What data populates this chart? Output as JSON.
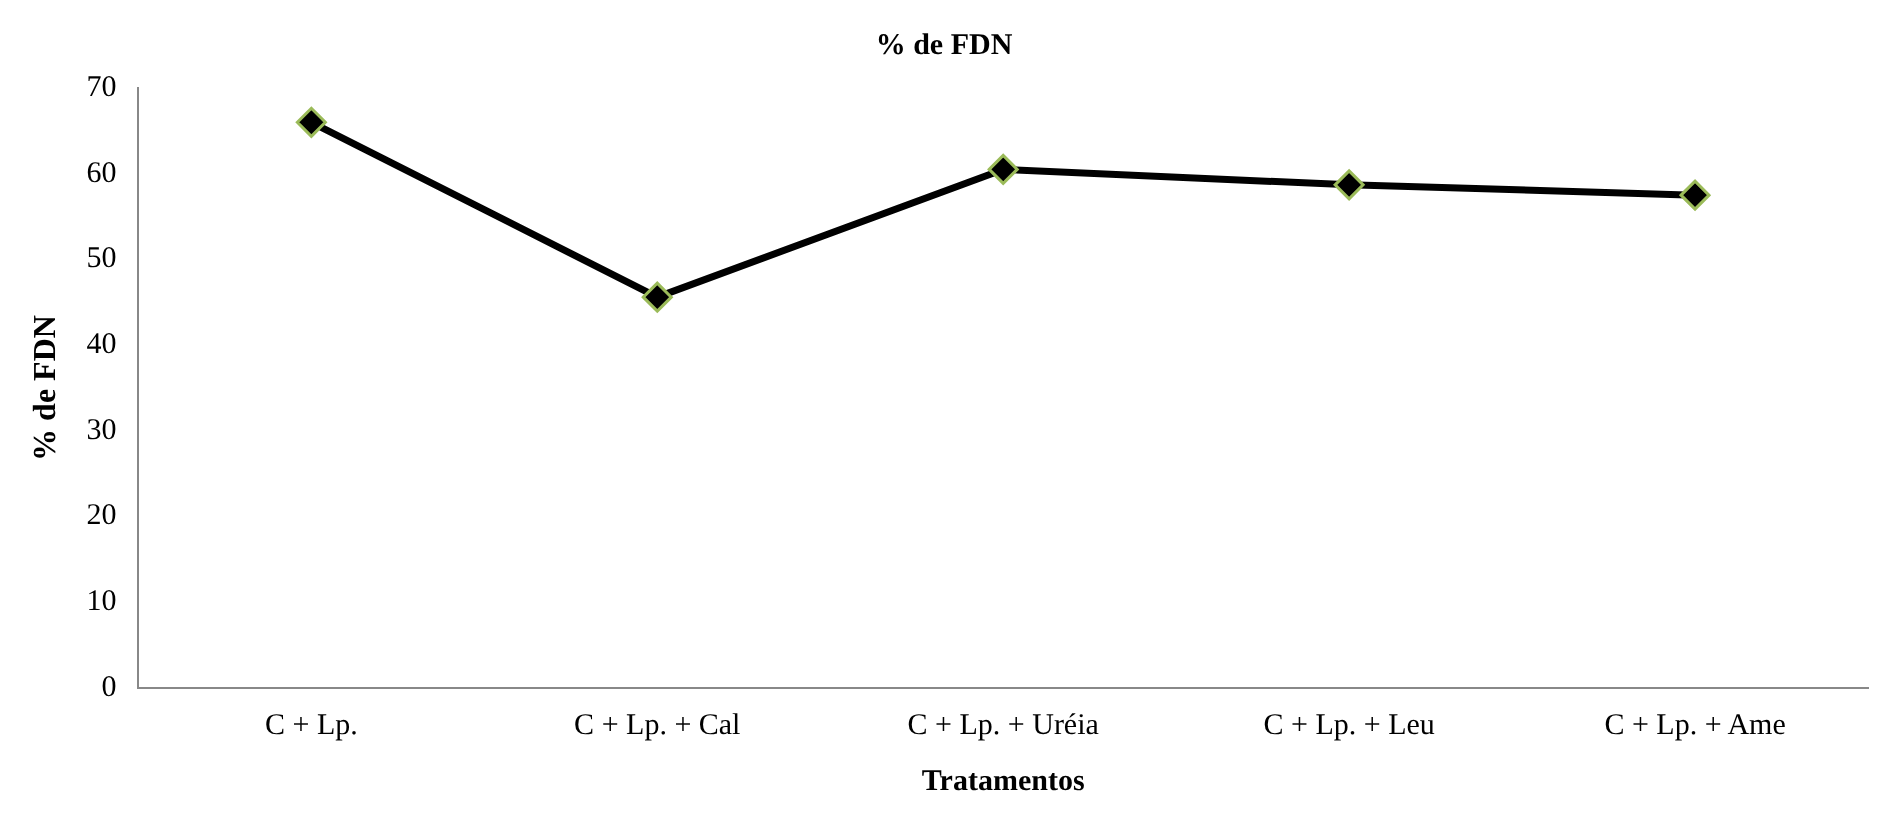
{
  "chart_data": {
    "type": "line",
    "title": "% de FDN",
    "xlabel": "Tratamentos",
    "ylabel": "% de FDN",
    "categories": [
      "C + Lp.",
      "C + Lp. + Cal",
      "C + Lp. + Uréia",
      "C + Lp. + Leu",
      "C + Lp. + Ame"
    ],
    "series": [
      {
        "color": "#000000",
        "values": [
          66,
          45.6,
          60.5,
          58.7,
          57.5
        ]
      }
    ],
    "ylim": [
      0,
      70
    ],
    "yticks": [
      0,
      10,
      20,
      30,
      40,
      50,
      60,
      70
    ],
    "grid": false,
    "legend": false,
    "marker": "diamond",
    "line_style": "solid"
  }
}
